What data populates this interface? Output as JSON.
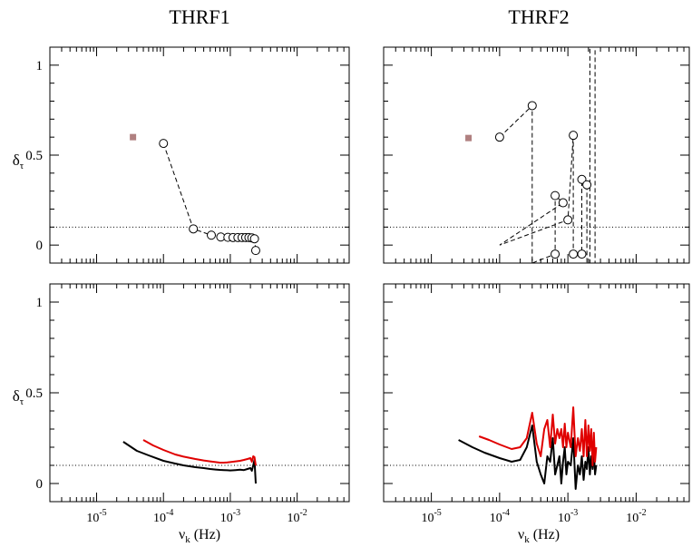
{
  "columns": [
    "THRF1",
    "THRF2"
  ],
  "ylabel": {
    "main": "δ",
    "sub": "τ"
  },
  "xlabel": {
    "main": "ν",
    "sub": "k",
    "unit": " (Hz)"
  },
  "chart_data": [
    {
      "type": "scatter",
      "panel": "top-left",
      "title": "THRF1",
      "xscale": "log",
      "xlim": [
        2e-06,
        0.06
      ],
      "ylim": [
        -0.1,
        1.1
      ],
      "yticks": [
        0,
        0.5,
        1
      ],
      "reference_y": 0.1,
      "square_marker": {
        "x": 3.5e-05,
        "y": 0.6,
        "color": "#b08080"
      },
      "series": [
        {
          "points": [
            [
              0.0001,
              0.565
            ],
            [
              0.00028,
              0.09
            ],
            [
              0.00052,
              0.055
            ],
            [
              0.00072,
              0.045
            ],
            [
              0.00092,
              0.043
            ],
            [
              0.0011,
              0.042
            ],
            [
              0.0013,
              0.042
            ],
            [
              0.0015,
              0.042
            ],
            [
              0.0017,
              0.042
            ],
            [
              0.0019,
              0.042
            ],
            [
              0.0021,
              0.04
            ],
            [
              0.0023,
              0.035
            ],
            [
              0.0024,
              -0.03
            ]
          ]
        }
      ]
    },
    {
      "type": "scatter",
      "panel": "top-right",
      "title": "THRF2",
      "xscale": "log",
      "xlim": [
        2e-06,
        0.06
      ],
      "ylim": [
        -0.1,
        1.1
      ],
      "yticks": [
        0,
        0.5,
        1
      ],
      "reference_y": 0.1,
      "square_marker": {
        "x": 3.5e-05,
        "y": 0.595,
        "color": "#b08080"
      },
      "series": [
        {
          "points": [
            [
              0.0001,
              0.6
            ],
            [
              0.0003,
              0.775
            ],
            [
              0.0003,
              -0.1
            ],
            [
              0.00065,
              -0.05
            ],
            [
              0.00065,
              0.275
            ],
            [
              0.00085,
              0.235
            ],
            [
              0.0001,
              0.0
            ],
            [
              0.001,
              0.14
            ],
            [
              0.0012,
              0.61
            ],
            [
              0.0012,
              -0.05
            ],
            [
              0.0016,
              -0.05
            ],
            [
              0.0016,
              0.365
            ],
            [
              0.0019,
              0.335
            ],
            [
              0.0019,
              -0.1
            ],
            [
              0.0021,
              -0.1
            ],
            [
              0.0021,
              1.1
            ],
            [
              0.0025,
              1.1
            ],
            [
              0.0025,
              -0.1
            ]
          ]
        }
      ]
    },
    {
      "type": "line",
      "panel": "bottom-left",
      "xscale": "log",
      "xlim": [
        2e-06,
        0.06
      ],
      "ylim": [
        -0.1,
        1.1
      ],
      "yticks": [
        0,
        0.5,
        1
      ],
      "reference_y": 0.1,
      "series": [
        {
          "color": "#000000",
          "points": [
            [
              2.5e-05,
              0.23
            ],
            [
              4e-05,
              0.18
            ],
            [
              6e-05,
              0.155
            ],
            [
              0.0001,
              0.125
            ],
            [
              0.00015,
              0.11
            ],
            [
              0.0002,
              0.1
            ],
            [
              0.0003,
              0.09
            ],
            [
              0.0004,
              0.085
            ],
            [
              0.0005,
              0.08
            ],
            [
              0.0006,
              0.077
            ],
            [
              0.0007,
              0.075
            ],
            [
              0.0008,
              0.074
            ],
            [
              0.0009,
              0.073
            ],
            [
              0.001,
              0.072
            ],
            [
              0.0012,
              0.074
            ],
            [
              0.0014,
              0.076
            ],
            [
              0.0016,
              0.074
            ],
            [
              0.0018,
              0.08
            ],
            [
              0.002,
              0.085
            ],
            [
              0.0021,
              0.07
            ],
            [
              0.0022,
              0.1
            ],
            [
              0.0023,
              0.13
            ],
            [
              0.0024,
              0.0
            ]
          ]
        },
        {
          "color": "#e00000",
          "points": [
            [
              5e-05,
              0.24
            ],
            [
              7e-05,
              0.21
            ],
            [
              0.0001,
              0.185
            ],
            [
              0.00015,
              0.16
            ],
            [
              0.0002,
              0.148
            ],
            [
              0.0003,
              0.135
            ],
            [
              0.0004,
              0.127
            ],
            [
              0.0005,
              0.122
            ],
            [
              0.0006,
              0.118
            ],
            [
              0.0007,
              0.115
            ],
            [
              0.0008,
              0.115
            ],
            [
              0.0009,
              0.116
            ],
            [
              0.001,
              0.118
            ],
            [
              0.0012,
              0.122
            ],
            [
              0.0014,
              0.125
            ],
            [
              0.0016,
              0.13
            ],
            [
              0.0018,
              0.135
            ],
            [
              0.002,
              0.14
            ],
            [
              0.0021,
              0.12
            ],
            [
              0.0022,
              0.15
            ],
            [
              0.0023,
              0.145
            ],
            [
              0.0024,
              0.1
            ]
          ]
        }
      ]
    },
    {
      "type": "line",
      "panel": "bottom-right",
      "xscale": "log",
      "xlim": [
        2e-06,
        0.06
      ],
      "ylim": [
        -0.1,
        1.1
      ],
      "yticks": [
        0,
        0.5,
        1
      ],
      "reference_y": 0.1,
      "series": [
        {
          "color": "#000000",
          "points": [
            [
              2.5e-05,
              0.24
            ],
            [
              4e-05,
              0.2
            ],
            [
              6e-05,
              0.17
            ],
            [
              0.0001,
              0.14
            ],
            [
              0.00015,
              0.12
            ],
            [
              0.0002,
              0.13
            ],
            [
              0.00025,
              0.2
            ],
            [
              0.0003,
              0.32
            ],
            [
              0.00035,
              0.12
            ],
            [
              0.0004,
              0.05
            ],
            [
              0.00045,
              0.0
            ],
            [
              0.0005,
              0.15
            ],
            [
              0.00055,
              0.12
            ],
            [
              0.0006,
              0.25
            ],
            [
              0.00065,
              0.05
            ],
            [
              0.0007,
              0.1
            ],
            [
              0.00075,
              0.15
            ],
            [
              0.0008,
              0.0
            ],
            [
              0.00085,
              0.12
            ],
            [
              0.0009,
              0.2
            ],
            [
              0.00095,
              0.05
            ],
            [
              0.001,
              0.12
            ],
            [
              0.0011,
              0.1
            ],
            [
              0.0012,
              0.25
            ],
            [
              0.0013,
              -0.03
            ],
            [
              0.0014,
              0.1
            ],
            [
              0.0015,
              0.05
            ],
            [
              0.0016,
              0.15
            ],
            [
              0.0017,
              0.02
            ],
            [
              0.0018,
              0.12
            ],
            [
              0.0019,
              0.08
            ],
            [
              0.002,
              0.2
            ],
            [
              0.0021,
              0.05
            ],
            [
              0.0022,
              0.15
            ],
            [
              0.0023,
              0.08
            ],
            [
              0.0024,
              0.18
            ],
            [
              0.0025,
              0.05
            ],
            [
              0.0026,
              0.1
            ]
          ]
        },
        {
          "color": "#e00000",
          "points": [
            [
              5e-05,
              0.26
            ],
            [
              7e-05,
              0.24
            ],
            [
              0.0001,
              0.215
            ],
            [
              0.00015,
              0.19
            ],
            [
              0.0002,
              0.2
            ],
            [
              0.00025,
              0.25
            ],
            [
              0.0003,
              0.39
            ],
            [
              0.00035,
              0.22
            ],
            [
              0.0004,
              0.15
            ],
            [
              0.00045,
              0.3
            ],
            [
              0.0005,
              0.35
            ],
            [
              0.00055,
              0.2
            ],
            [
              0.0006,
              0.38
            ],
            [
              0.00065,
              0.22
            ],
            [
              0.0007,
              0.3
            ],
            [
              0.00075,
              0.25
            ],
            [
              0.0008,
              0.3
            ],
            [
              0.00085,
              0.2
            ],
            [
              0.0009,
              0.33
            ],
            [
              0.00095,
              0.2
            ],
            [
              0.001,
              0.28
            ],
            [
              0.0011,
              0.2
            ],
            [
              0.0012,
              0.42
            ],
            [
              0.0013,
              0.15
            ],
            [
              0.0014,
              0.25
            ],
            [
              0.0015,
              0.18
            ],
            [
              0.0016,
              0.3
            ],
            [
              0.0017,
              0.15
            ],
            [
              0.0018,
              0.35
            ],
            [
              0.0019,
              0.15
            ],
            [
              0.002,
              0.32
            ],
            [
              0.0021,
              0.18
            ],
            [
              0.0022,
              0.3
            ],
            [
              0.0023,
              0.1
            ],
            [
              0.0024,
              0.28
            ],
            [
              0.0025,
              0.12
            ],
            [
              0.0026,
              0.2
            ]
          ]
        }
      ]
    }
  ]
}
